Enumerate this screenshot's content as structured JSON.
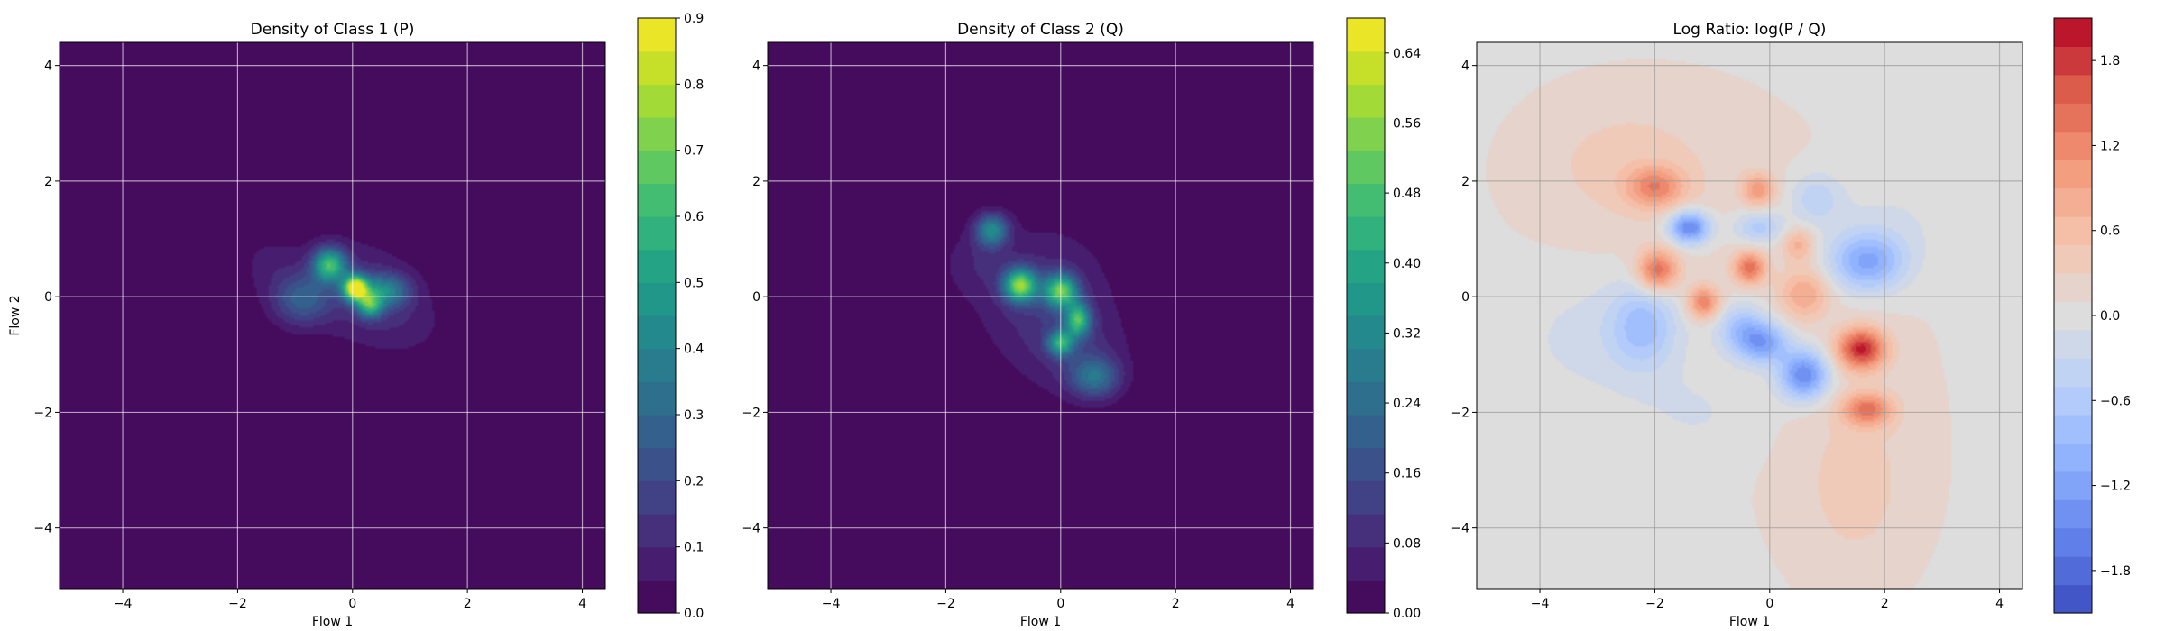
{
  "chart_data": [
    {
      "type": "heatmap",
      "title": "Density of Class 1 (P)",
      "xlabel": "Flow 1",
      "ylabel": "Flow 2",
      "xlim": [
        -5.1,
        4.4
      ],
      "ylim": [
        -5.05,
        4.4
      ],
      "xticks": [
        "−4",
        "−2",
        "0",
        "2",
        "4"
      ],
      "yticks": [
        "−4",
        "−2",
        "0",
        "2",
        "4"
      ],
      "xtick_values": [
        -4,
        -2,
        0,
        2,
        4
      ],
      "ytick_values": [
        -4,
        -2,
        0,
        2,
        4
      ],
      "grid": true,
      "colormap": "viridis",
      "colorbar_range": [
        0,
        0.9
      ],
      "colorbar_ticks": [
        "0.0",
        "0.1",
        "0.2",
        "0.3",
        "0.4",
        "0.5",
        "0.6",
        "0.7",
        "0.8",
        "0.9"
      ],
      "colorbar_tick_values": [
        0,
        0.1,
        0.2,
        0.3,
        0.4,
        0.5,
        0.6,
        0.7,
        0.8,
        0.9
      ],
      "blobs": [
        {
          "x": 0.05,
          "y": 0.15,
          "sx": 0.15,
          "sy": 0.15,
          "v": 0.85
        },
        {
          "x": -0.4,
          "y": 0.55,
          "sx": 0.2,
          "sy": 0.2,
          "v": 0.55
        },
        {
          "x": 0.3,
          "y": -0.15,
          "sx": 0.15,
          "sy": 0.15,
          "v": 0.45
        },
        {
          "x": 0.55,
          "y": 0.1,
          "sx": 0.3,
          "sy": 0.2,
          "v": 0.35
        },
        {
          "x": -0.9,
          "y": -0.05,
          "sx": 0.35,
          "sy": 0.3,
          "v": 0.22
        },
        {
          "x": -0.1,
          "y": 0.2,
          "sx": 0.8,
          "sy": 0.55,
          "v": 0.12
        },
        {
          "x": 0.8,
          "y": -0.5,
          "sx": 0.6,
          "sy": 0.4,
          "v": 0.07
        },
        {
          "x": -1.5,
          "y": 0.6,
          "sx": 0.35,
          "sy": 0.35,
          "v": 0.05
        },
        {
          "x": 1.6,
          "y": -1.9,
          "sx": 0.12,
          "sy": 0.1,
          "v": 0.04
        }
      ]
    },
    {
      "type": "heatmap",
      "title": "Density of Class 2 (Q)",
      "xlabel": "Flow 1",
      "ylabel": "",
      "xlim": [
        -5.1,
        4.4
      ],
      "ylim": [
        -5.05,
        4.4
      ],
      "xticks": [
        "−4",
        "−2",
        "0",
        "2",
        "4"
      ],
      "yticks": [
        "−4",
        "−2",
        "0",
        "2",
        "4"
      ],
      "xtick_values": [
        -4,
        -2,
        0,
        2,
        4
      ],
      "ytick_values": [
        -4,
        -2,
        0,
        2,
        4
      ],
      "grid": true,
      "colormap": "viridis",
      "colorbar_range": [
        0,
        0.68
      ],
      "colorbar_ticks": [
        "0.00",
        "0.08",
        "0.16",
        "0.24",
        "0.32",
        "0.40",
        "0.48",
        "0.56",
        "0.64"
      ],
      "colorbar_tick_values": [
        0,
        0.08,
        0.16,
        0.24,
        0.32,
        0.4,
        0.48,
        0.56,
        0.64
      ],
      "blobs": [
        {
          "x": -0.7,
          "y": 0.2,
          "sx": 0.2,
          "sy": 0.2,
          "v": 0.5
        },
        {
          "x": 0.0,
          "y": 0.1,
          "sx": 0.2,
          "sy": 0.2,
          "v": 0.45
        },
        {
          "x": 0.3,
          "y": -0.4,
          "sx": 0.15,
          "sy": 0.2,
          "v": 0.4
        },
        {
          "x": 0.0,
          "y": -0.8,
          "sx": 0.15,
          "sy": 0.15,
          "v": 0.35
        },
        {
          "x": -1.2,
          "y": 1.15,
          "sx": 0.2,
          "sy": 0.2,
          "v": 0.3
        },
        {
          "x": 0.6,
          "y": -1.4,
          "sx": 0.3,
          "sy": 0.25,
          "v": 0.22
        },
        {
          "x": -0.3,
          "y": 0.0,
          "sx": 0.8,
          "sy": 0.8,
          "v": 0.1
        },
        {
          "x": 0.3,
          "y": -1.0,
          "sx": 0.6,
          "sy": 0.5,
          "v": 0.07
        },
        {
          "x": -1.5,
          "y": 0.6,
          "sx": 0.4,
          "sy": 0.4,
          "v": 0.05
        }
      ]
    },
    {
      "type": "heatmap",
      "title": "Log Ratio: log(P / Q)",
      "xlabel": "Flow 1",
      "ylabel": "",
      "xlim": [
        -5.1,
        4.4
      ],
      "ylim": [
        -5.05,
        4.4
      ],
      "xticks": [
        "−4",
        "−2",
        "0",
        "2",
        "4"
      ],
      "yticks": [
        "−4",
        "−2",
        "0",
        "2",
        "4"
      ],
      "xtick_values": [
        -4,
        -2,
        0,
        2,
        4
      ],
      "ytick_values": [
        -4,
        -2,
        0,
        2,
        4
      ],
      "grid": true,
      "colormap": "coolwarm",
      "colorbar_range": [
        -2.1,
        2.1
      ],
      "colorbar_ticks": [
        "−1.8",
        "−1.2",
        "−0.6",
        "0.0",
        "0.6",
        "1.2",
        "1.8"
      ],
      "colorbar_tick_values": [
        -1.8,
        -1.2,
        -0.6,
        0.0,
        0.6,
        1.2,
        1.8
      ],
      "blobs": [
        {
          "x": 1.6,
          "y": -0.9,
          "sx": 0.3,
          "sy": 0.25,
          "v": 1.8
        },
        {
          "x": 1.7,
          "y": -1.95,
          "sx": 0.3,
          "sy": 0.2,
          "v": 1.2
        },
        {
          "x": -1.95,
          "y": 0.45,
          "sx": 0.25,
          "sy": 0.25,
          "v": 1.4
        },
        {
          "x": -1.15,
          "y": -0.1,
          "sx": 0.2,
          "sy": 0.2,
          "v": 1.2
        },
        {
          "x": -0.35,
          "y": 0.5,
          "sx": 0.2,
          "sy": 0.2,
          "v": 1.3
        },
        {
          "x": -2.0,
          "y": 1.9,
          "sx": 0.35,
          "sy": 0.25,
          "v": 1.0
        },
        {
          "x": -0.2,
          "y": 1.85,
          "sx": 0.2,
          "sy": 0.2,
          "v": 0.9
        },
        {
          "x": 0.5,
          "y": 0.9,
          "sx": 0.2,
          "sy": 0.2,
          "v": 0.7
        },
        {
          "x": 0.6,
          "y": 0.05,
          "sx": 0.3,
          "sy": 0.3,
          "v": 0.8
        },
        {
          "x": -1.4,
          "y": 1.2,
          "sx": 0.25,
          "sy": 0.2,
          "v": -1.7
        },
        {
          "x": 1.7,
          "y": 0.6,
          "sx": 0.45,
          "sy": 0.35,
          "v": -1.2
        },
        {
          "x": 0.6,
          "y": -1.35,
          "sx": 0.3,
          "sy": 0.3,
          "v": -1.6
        },
        {
          "x": -0.1,
          "y": -0.8,
          "sx": 0.3,
          "sy": 0.25,
          "v": -1.2
        },
        {
          "x": -2.2,
          "y": -0.5,
          "sx": 0.4,
          "sy": 0.5,
          "v": -0.8
        },
        {
          "x": -0.5,
          "y": -0.55,
          "sx": 0.3,
          "sy": 0.3,
          "v": -0.8
        },
        {
          "x": -0.2,
          "y": 1.2,
          "sx": 0.3,
          "sy": 0.2,
          "v": -0.7
        },
        {
          "x": 0.8,
          "y": 1.7,
          "sx": 0.3,
          "sy": 0.3,
          "v": -0.5
        },
        {
          "x": -1.2,
          "y": -2.0,
          "sx": 0.9,
          "sy": 0.6,
          "v": -0.2
        },
        {
          "x": 2.0,
          "y": 1.3,
          "sx": 1.0,
          "sy": 0.6,
          "v": -0.2
        },
        {
          "x": -2.5,
          "y": 2.3,
          "sx": 1.3,
          "sy": 0.9,
          "v": 0.3
        },
        {
          "x": 1.5,
          "y": -3.3,
          "sx": 0.8,
          "sy": 1.3,
          "v": 0.3
        },
        {
          "x": -3.0,
          "y": -0.7,
          "sx": 1.0,
          "sy": 0.8,
          "v": -0.25
        },
        {
          "x": 0.0,
          "y": 0.0,
          "sx": 4.0,
          "sy": 4.0,
          "v": 0.12
        }
      ]
    }
  ]
}
